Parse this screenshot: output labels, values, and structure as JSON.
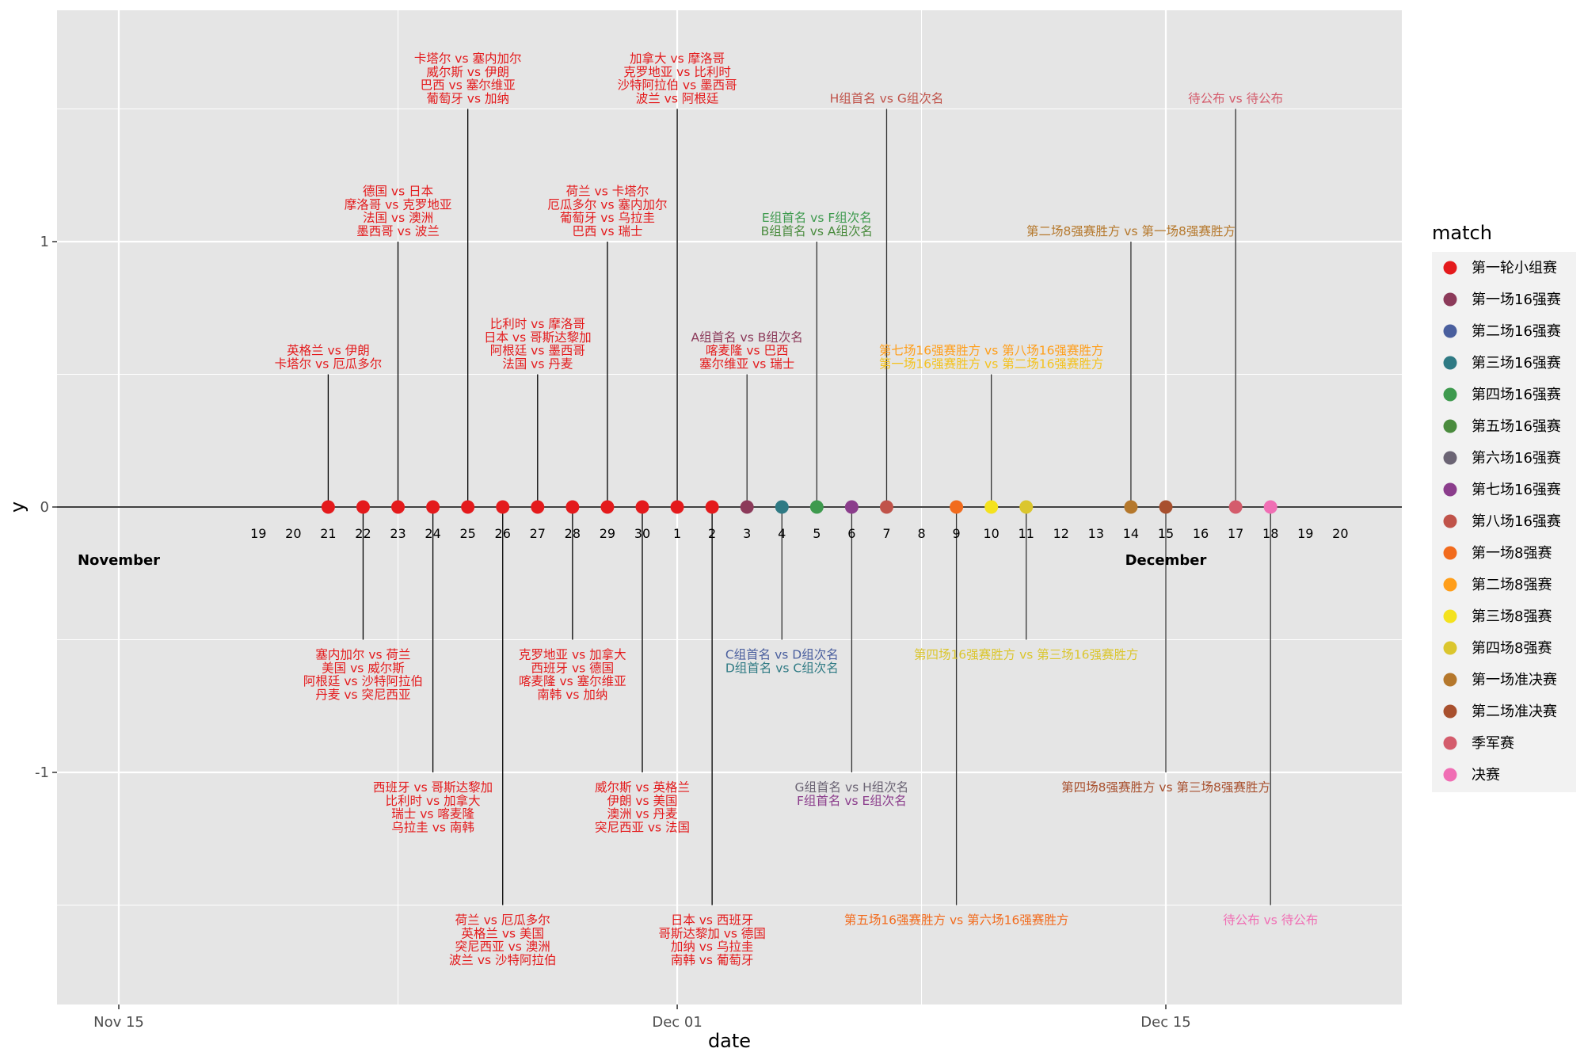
{
  "chart_data": {
    "type": "timeline",
    "xlabel": "date",
    "ylabel": "y",
    "ylim": [
      -1.88,
      1.88
    ],
    "y_ticks": [
      -1,
      0,
      1
    ],
    "y_tick_labels": [
      "-1",
      "0",
      "1"
    ],
    "xlim": [
      "2022-11-13",
      "2022-12-22"
    ],
    "x_ticks": [
      {
        "date": "2022-11-15",
        "label": "Nov 15"
      },
      {
        "date": "2022-12-01",
        "label": "Dec 01"
      },
      {
        "date": "2022-12-15",
        "label": "Dec 15"
      }
    ],
    "month_labels": [
      {
        "date": "2022-11-15",
        "label": "November"
      },
      {
        "date": "2022-12-15",
        "label": "December"
      }
    ],
    "day_labels": [
      {
        "date": "2022-11-19",
        "label": "19"
      },
      {
        "date": "2022-11-20",
        "label": "20"
      },
      {
        "date": "2022-11-21",
        "label": "21"
      },
      {
        "date": "2022-11-22",
        "label": "22"
      },
      {
        "date": "2022-11-23",
        "label": "23"
      },
      {
        "date": "2022-11-24",
        "label": "24"
      },
      {
        "date": "2022-11-25",
        "label": "25"
      },
      {
        "date": "2022-11-26",
        "label": "26"
      },
      {
        "date": "2022-11-27",
        "label": "27"
      },
      {
        "date": "2022-11-28",
        "label": "28"
      },
      {
        "date": "2022-11-29",
        "label": "29"
      },
      {
        "date": "2022-11-30",
        "label": "30"
      },
      {
        "date": "2022-12-01",
        "label": "1"
      },
      {
        "date": "2022-12-02",
        "label": "2"
      },
      {
        "date": "2022-12-03",
        "label": "3"
      },
      {
        "date": "2022-12-04",
        "label": "4"
      },
      {
        "date": "2022-12-05",
        "label": "5"
      },
      {
        "date": "2022-12-06",
        "label": "6"
      },
      {
        "date": "2022-12-07",
        "label": "7"
      },
      {
        "date": "2022-12-08",
        "label": "8"
      },
      {
        "date": "2022-12-09",
        "label": "9"
      },
      {
        "date": "2022-12-10",
        "label": "10"
      },
      {
        "date": "2022-12-11",
        "label": "11"
      },
      {
        "date": "2022-12-12",
        "label": "12"
      },
      {
        "date": "2022-12-13",
        "label": "13"
      },
      {
        "date": "2022-12-14",
        "label": "14"
      },
      {
        "date": "2022-12-15",
        "label": "15"
      },
      {
        "date": "2022-12-16",
        "label": "16"
      },
      {
        "date": "2022-12-17",
        "label": "17"
      },
      {
        "date": "2022-12-18",
        "label": "18"
      },
      {
        "date": "2022-12-19",
        "label": "19"
      },
      {
        "date": "2022-12-20",
        "label": "20"
      }
    ],
    "legend": {
      "title": "match",
      "position": "right",
      "entries": [
        {
          "name": "第一轮小组赛",
          "color": "#E41A1C"
        },
        {
          "name": "第一场16强赛",
          "color": "#8C3A5A"
        },
        {
          "name": "第二场16强赛",
          "color": "#4A5F9E"
        },
        {
          "name": "第三场16强赛",
          "color": "#2F7A84"
        },
        {
          "name": "第四场16强赛",
          "color": "#3E9A4E"
        },
        {
          "name": "第五场16强赛",
          "color": "#4A8B3E"
        },
        {
          "name": "第六场16强赛",
          "color": "#6B6474"
        },
        {
          "name": "第七场16强赛",
          "color": "#8B3D8C"
        },
        {
          "name": "第八场16强赛",
          "color": "#C0534A"
        },
        {
          "name": "第一场8强赛",
          "color": "#F26B1D"
        },
        {
          "name": "第二场8强赛",
          "color": "#FF9E1A"
        },
        {
          "name": "第三场8强赛",
          "color": "#F4E21E"
        },
        {
          "name": "第四场8强赛",
          "color": "#DBC62E"
        },
        {
          "name": "第一场准决赛",
          "color": "#B5782C"
        },
        {
          "name": "第二场准决赛",
          "color": "#A8502E"
        },
        {
          "name": "季军赛",
          "color": "#D45C6C"
        },
        {
          "name": "决赛",
          "color": "#F06EB4"
        }
      ]
    },
    "points": [
      {
        "date": "2022-11-21",
        "color": "#E41A1C"
      },
      {
        "date": "2022-11-22",
        "color": "#E41A1C"
      },
      {
        "date": "2022-11-23",
        "color": "#E41A1C"
      },
      {
        "date": "2022-11-24",
        "color": "#E41A1C"
      },
      {
        "date": "2022-11-25",
        "color": "#E41A1C"
      },
      {
        "date": "2022-11-26",
        "color": "#E41A1C"
      },
      {
        "date": "2022-11-27",
        "color": "#E41A1C"
      },
      {
        "date": "2022-11-28",
        "color": "#E41A1C"
      },
      {
        "date": "2022-11-29",
        "color": "#E41A1C"
      },
      {
        "date": "2022-11-30",
        "color": "#E41A1C"
      },
      {
        "date": "2022-12-01",
        "color": "#E41A1C"
      },
      {
        "date": "2022-12-02",
        "color": "#E41A1C"
      },
      {
        "date": "2022-12-03",
        "color": "#8C3A5A"
      },
      {
        "date": "2022-12-04",
        "color": "#2F7A84"
      },
      {
        "date": "2022-12-05",
        "color": "#3E9A4E"
      },
      {
        "date": "2022-12-06",
        "color": "#8B3D8C"
      },
      {
        "date": "2022-12-07",
        "color": "#C0534A"
      },
      {
        "date": "2022-12-09",
        "color": "#F26B1D"
      },
      {
        "date": "2022-12-10",
        "color": "#F4E21E"
      },
      {
        "date": "2022-12-11",
        "color": "#DBC62E"
      },
      {
        "date": "2022-12-14",
        "color": "#B5782C"
      },
      {
        "date": "2022-12-15",
        "color": "#A8502E"
      },
      {
        "date": "2022-12-17",
        "color": "#D45C6C"
      },
      {
        "date": "2022-12-18",
        "color": "#F06EB4"
      }
    ],
    "events": [
      {
        "date": "2022-11-21",
        "y": 0.5,
        "lines": [
          {
            "text": "英格兰 vs 伊朗",
            "color": "#E41A1C"
          },
          {
            "text": "卡塔尔 vs 厄瓜多尔",
            "color": "#E41A1C"
          }
        ]
      },
      {
        "date": "2022-11-22",
        "y": -0.5,
        "lines": [
          {
            "text": "塞内加尔 vs 荷兰",
            "color": "#E41A1C"
          },
          {
            "text": "美国 vs 威尔斯",
            "color": "#E41A1C"
          },
          {
            "text": "阿根廷 vs 沙特阿拉伯",
            "color": "#E41A1C"
          },
          {
            "text": "丹麦 vs 突尼西亚",
            "color": "#E41A1C"
          }
        ]
      },
      {
        "date": "2022-11-23",
        "y": 1.0,
        "lines": [
          {
            "text": "德国 vs 日本",
            "color": "#E41A1C"
          },
          {
            "text": "摩洛哥 vs 克罗地亚",
            "color": "#E41A1C"
          },
          {
            "text": "法国 vs 澳洲",
            "color": "#E41A1C"
          },
          {
            "text": "墨西哥 vs 波兰",
            "color": "#E41A1C"
          }
        ]
      },
      {
        "date": "2022-11-24",
        "y": -1.0,
        "lines": [
          {
            "text": "西班牙 vs 哥斯达黎加",
            "color": "#E41A1C"
          },
          {
            "text": "比利时 vs 加拿大",
            "color": "#E41A1C"
          },
          {
            "text": "瑞士 vs 喀麦隆",
            "color": "#E41A1C"
          },
          {
            "text": "乌拉圭 vs 南韩",
            "color": "#E41A1C"
          }
        ]
      },
      {
        "date": "2022-11-25",
        "y": 1.5,
        "lines": [
          {
            "text": "卡塔尔 vs 塞内加尔",
            "color": "#E41A1C"
          },
          {
            "text": "威尔斯 vs 伊朗",
            "color": "#E41A1C"
          },
          {
            "text": "巴西 vs 塞尔维亚",
            "color": "#E41A1C"
          },
          {
            "text": "葡萄牙 vs 加纳",
            "color": "#E41A1C"
          }
        ]
      },
      {
        "date": "2022-11-26",
        "y": -1.5,
        "lines": [
          {
            "text": "荷兰 vs 厄瓜多尔",
            "color": "#E41A1C"
          },
          {
            "text": "英格兰 vs 美国",
            "color": "#E41A1C"
          },
          {
            "text": "突尼西亚 vs 澳洲",
            "color": "#E41A1C"
          },
          {
            "text": "波兰 vs 沙特阿拉伯",
            "color": "#E41A1C"
          }
        ]
      },
      {
        "date": "2022-11-27",
        "y": 0.5,
        "lines": [
          {
            "text": "比利时 vs 摩洛哥",
            "color": "#E41A1C"
          },
          {
            "text": "日本 vs 哥斯达黎加",
            "color": "#E41A1C"
          },
          {
            "text": "阿根廷 vs 墨西哥",
            "color": "#E41A1C"
          },
          {
            "text": "法国 vs 丹麦",
            "color": "#E41A1C"
          }
        ]
      },
      {
        "date": "2022-11-28",
        "y": -0.5,
        "lines": [
          {
            "text": "克罗地亚 vs 加拿大",
            "color": "#E41A1C"
          },
          {
            "text": "西班牙 vs 德国",
            "color": "#E41A1C"
          },
          {
            "text": "喀麦隆 vs 塞尔维亚",
            "color": "#E41A1C"
          },
          {
            "text": "南韩 vs 加纳",
            "color": "#E41A1C"
          }
        ]
      },
      {
        "date": "2022-11-29",
        "y": 1.0,
        "lines": [
          {
            "text": "荷兰 vs 卡塔尔",
            "color": "#E41A1C"
          },
          {
            "text": "厄瓜多尔 vs 塞内加尔",
            "color": "#E41A1C"
          },
          {
            "text": "葡萄牙 vs 乌拉圭",
            "color": "#E41A1C"
          },
          {
            "text": "巴西 vs 瑞士",
            "color": "#E41A1C"
          }
        ]
      },
      {
        "date": "2022-11-30",
        "y": -1.0,
        "lines": [
          {
            "text": "威尔斯 vs 英格兰",
            "color": "#E41A1C"
          },
          {
            "text": "伊朗 vs 美国",
            "color": "#E41A1C"
          },
          {
            "text": "澳洲 vs 丹麦",
            "color": "#E41A1C"
          },
          {
            "text": "突尼西亚 vs 法国",
            "color": "#E41A1C"
          }
        ]
      },
      {
        "date": "2022-12-01",
        "y": 1.5,
        "lines": [
          {
            "text": "加拿大 vs 摩洛哥",
            "color": "#E41A1C"
          },
          {
            "text": "克罗地亚 vs 比利时",
            "color": "#E41A1C"
          },
          {
            "text": "沙特阿拉伯 vs 墨西哥",
            "color": "#E41A1C"
          },
          {
            "text": "波兰 vs 阿根廷",
            "color": "#E41A1C"
          }
        ]
      },
      {
        "date": "2022-12-02",
        "y": -1.5,
        "lines": [
          {
            "text": "日本 vs 西班牙",
            "color": "#E41A1C"
          },
          {
            "text": "哥斯达黎加 vs 德国",
            "color": "#E41A1C"
          },
          {
            "text": "加纳 vs 乌拉圭",
            "color": "#E41A1C"
          },
          {
            "text": "南韩 vs 葡萄牙",
            "color": "#E41A1C"
          }
        ]
      },
      {
        "date": "2022-12-03",
        "y": 0.5,
        "lines": [
          {
            "text": "A组首名 vs B组次名",
            "color": "#8C3A5A"
          },
          {
            "text": "喀麦隆 vs 巴西",
            "color": "#E41A1C"
          },
          {
            "text": "塞尔维亚 vs 瑞士",
            "color": "#E41A1C"
          }
        ]
      },
      {
        "date": "2022-12-04",
        "y": -0.5,
        "lines": [
          {
            "text": "C组首名 vs D组次名",
            "color": "#4A5F9E"
          },
          {
            "text": "D组首名 vs C组次名",
            "color": "#2F7A84"
          }
        ]
      },
      {
        "date": "2022-12-05",
        "y": 1.0,
        "lines": [
          {
            "text": "E组首名 vs F组次名",
            "color": "#3E9A4E"
          },
          {
            "text": "B组首名 vs A组次名",
            "color": "#4A8B3E"
          }
        ]
      },
      {
        "date": "2022-12-06",
        "y": -1.0,
        "lines": [
          {
            "text": "G组首名 vs H组次名",
            "color": "#6B6474"
          },
          {
            "text": "F组首名 vs E组次名",
            "color": "#8B3D8C"
          }
        ]
      },
      {
        "date": "2022-12-07",
        "y": 1.5,
        "lines": [
          {
            "text": "H组首名 vs G组次名",
            "color": "#C0534A"
          }
        ]
      },
      {
        "date": "2022-12-09",
        "y": -1.5,
        "lines": [
          {
            "text": "第五场16强赛胜方 vs 第六场16强赛胜方",
            "color": "#F26B1D"
          }
        ]
      },
      {
        "date": "2022-12-10",
        "y": 0.5,
        "lines": [
          {
            "text": "第七场16强赛胜方 vs 第八场16强赛胜方",
            "color": "#FF9E1A"
          },
          {
            "text": "第一场16强赛胜方 vs 第二场16强赛胜方",
            "color": "#F4C21E"
          }
        ]
      },
      {
        "date": "2022-12-11",
        "y": -0.5,
        "lines": [
          {
            "text": "第四场16强赛胜方 vs 第三场16强赛胜方",
            "color": "#DBC62E"
          }
        ]
      },
      {
        "date": "2022-12-14",
        "y": 1.0,
        "lines": [
          {
            "text": "第二场8强赛胜方 vs 第一场8强赛胜方",
            "color": "#B5782C"
          }
        ]
      },
      {
        "date": "2022-12-15",
        "y": -1.0,
        "lines": [
          {
            "text": "第四场8强赛胜方 vs 第三场8强赛胜方",
            "color": "#A8502E"
          }
        ]
      },
      {
        "date": "2022-12-17",
        "y": 1.5,
        "lines": [
          {
            "text": "待公布 vs 待公布",
            "color": "#D45C6C"
          }
        ]
      },
      {
        "date": "2022-12-18",
        "y": -1.5,
        "lines": [
          {
            "text": "待公布 vs 待公布",
            "color": "#F06EB4"
          }
        ]
      }
    ]
  }
}
